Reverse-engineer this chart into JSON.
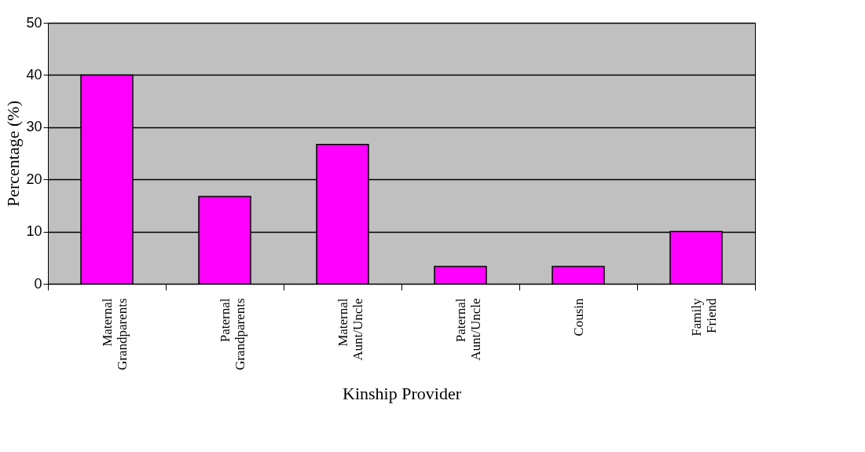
{
  "chart_data": {
    "type": "bar",
    "xlabel": "Kinship Provider",
    "ylabel": "Percentage (%)",
    "categories": [
      "Maternal Grandparents",
      "Paternal Grandparents",
      "Maternal Aunt/Uncle",
      "Paternal Aunt/Uncle",
      "Cousin",
      "Family Friend"
    ],
    "values": [
      40,
      16.7,
      26.7,
      3.3,
      3.3,
      10
    ],
    "color": "#ff00ff",
    "ylim": [
      0,
      50
    ],
    "yticks": [
      0,
      10,
      20,
      30,
      40,
      50
    ],
    "grid": "y"
  }
}
